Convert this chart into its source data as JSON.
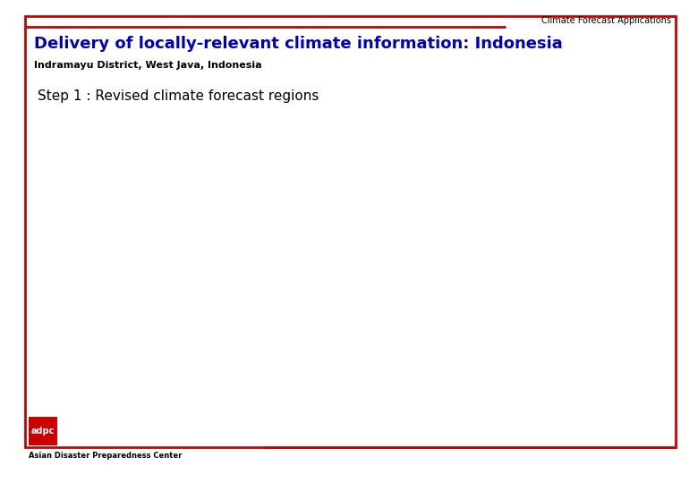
{
  "background_color": "#ffffff",
  "border_color": "#cc0000",
  "border_linewidth": 2.0,
  "header_label": "Climate Forecast Applications",
  "header_label_color": "#000000",
  "header_label_fontsize": 7,
  "title": "Delivery of locally-relevant climate information: Indonesia",
  "title_color": "#0000bb",
  "title_fontsize": 13,
  "subtitle": "Indramayu District, West Java, Indonesia",
  "subtitle_color": "#000000",
  "subtitle_fontsize": 8,
  "step_text": "Step 1 : Revised climate forecast regions",
  "step_text_color": "#000000",
  "step_text_fontsize": 11,
  "logo_bg_color": "#cc0000",
  "logo_text": "adpc",
  "logo_text_color": "#ffffff",
  "logo_text_fontsize": 7,
  "footer_text": "Asian Disaster Preparedness Center",
  "footer_text_color": "#000000",
  "footer_text_fontsize": 6
}
